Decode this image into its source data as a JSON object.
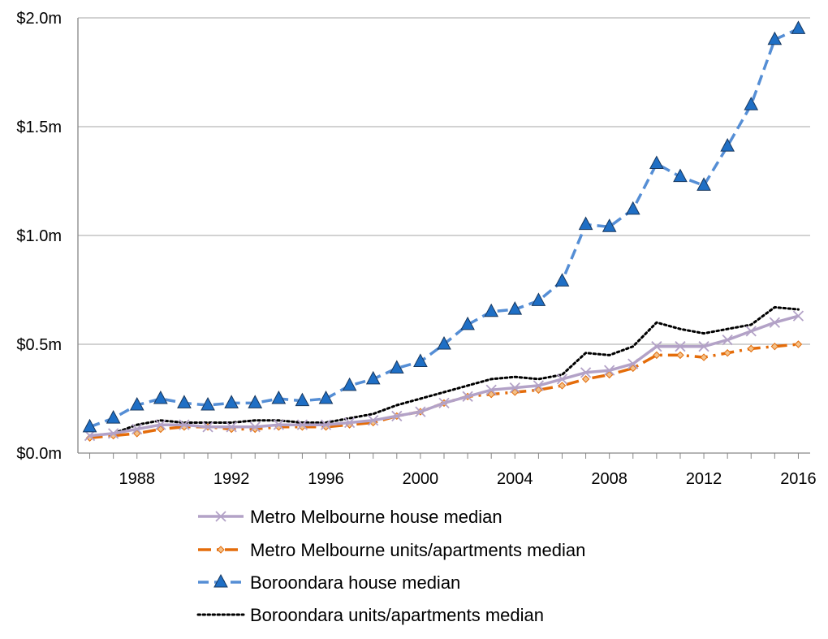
{
  "chart_data": {
    "type": "line",
    "title": "",
    "xlabel": "",
    "ylabel": "",
    "x": [
      1986,
      1987,
      1988,
      1989,
      1990,
      1991,
      1992,
      1993,
      1994,
      1995,
      1996,
      1997,
      1998,
      1999,
      2000,
      2001,
      2002,
      2003,
      2004,
      2005,
      2006,
      2007,
      2008,
      2009,
      2010,
      2011,
      2012,
      2013,
      2014,
      2015,
      2016
    ],
    "xlim": [
      1985.5,
      2016.5
    ],
    "ylim": [
      0,
      2.0
    ],
    "x_ticks": [
      1988,
      1992,
      1996,
      2000,
      2004,
      2008,
      2012,
      2016
    ],
    "x_tick_labels": [
      "1988",
      "1992",
      "1996",
      "2000",
      "2004",
      "2008",
      "2012",
      "2016"
    ],
    "y_ticks": [
      0,
      0.5,
      1.0,
      1.5,
      2.0
    ],
    "y_tick_labels": [
      "$0.0m",
      "$0.5m",
      "$1.0m",
      "$1.5m",
      "$2.0m"
    ],
    "grid": "horizontal",
    "legend_position": "bottom",
    "series": [
      {
        "name": "Metro Melbourne house median",
        "color": "#b3a2c7",
        "line_style": "solid",
        "marker": "x",
        "values": [
          0.08,
          0.09,
          0.11,
          0.13,
          0.13,
          0.12,
          0.12,
          0.12,
          0.13,
          0.13,
          0.13,
          0.14,
          0.15,
          0.17,
          0.19,
          0.23,
          0.26,
          0.29,
          0.3,
          0.31,
          0.34,
          0.37,
          0.38,
          0.41,
          0.49,
          0.49,
          0.49,
          0.52,
          0.56,
          0.6,
          0.63
        ]
      },
      {
        "name": "Metro Melbourne units/apartments median",
        "color": "#e46c0a",
        "line_style": "dash-dot",
        "marker": "diamond",
        "values": [
          0.07,
          0.08,
          0.09,
          0.11,
          0.12,
          0.12,
          0.11,
          0.11,
          0.12,
          0.12,
          0.12,
          0.13,
          0.14,
          0.17,
          0.19,
          0.23,
          0.26,
          0.27,
          0.28,
          0.29,
          0.31,
          0.34,
          0.36,
          0.39,
          0.45,
          0.45,
          0.44,
          0.46,
          0.48,
          0.49,
          0.5
        ]
      },
      {
        "name": "Boroondara house median",
        "color": "#558ed5",
        "line_style": "dashed",
        "marker": "triangle",
        "values": [
          0.12,
          0.16,
          0.22,
          0.25,
          0.23,
          0.22,
          0.23,
          0.23,
          0.25,
          0.24,
          0.25,
          0.31,
          0.34,
          0.39,
          0.42,
          0.5,
          0.59,
          0.65,
          0.66,
          0.7,
          0.79,
          1.05,
          1.04,
          1.12,
          1.33,
          1.27,
          1.23,
          1.41,
          1.6,
          1.9,
          1.95
        ]
      },
      {
        "name": "Boroondara units/apartments median",
        "color": "#000000",
        "line_style": "dotted",
        "marker": "none",
        "values": [
          0.08,
          0.09,
          0.13,
          0.15,
          0.14,
          0.14,
          0.14,
          0.15,
          0.15,
          0.14,
          0.14,
          0.16,
          0.18,
          0.22,
          0.25,
          0.28,
          0.31,
          0.34,
          0.35,
          0.34,
          0.36,
          0.46,
          0.45,
          0.49,
          0.6,
          0.57,
          0.55,
          0.57,
          0.59,
          0.67,
          0.66
        ]
      }
    ]
  }
}
